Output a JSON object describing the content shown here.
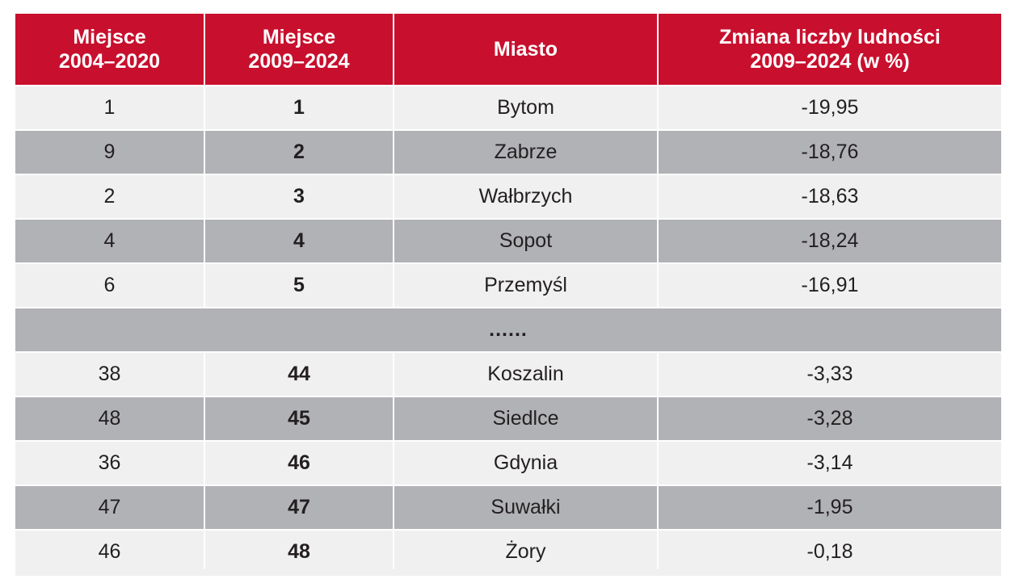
{
  "table": {
    "headers": [
      {
        "line1": "Miejsce",
        "line2": "2004–2020"
      },
      {
        "line1": "Miejsce",
        "line2": "2009–2024"
      },
      {
        "line1": "Miasto",
        "line2": ""
      },
      {
        "line1": "Zmiana liczby ludności",
        "line2": "2009–2024 (w %)"
      }
    ],
    "rows_top": [
      {
        "place_2004_2020": "1",
        "place_2009_2024": "1",
        "city": "Bytom",
        "change": "-19,95"
      },
      {
        "place_2004_2020": "9",
        "place_2009_2024": "2",
        "city": "Zabrze",
        "change": "-18,76"
      },
      {
        "place_2004_2020": "2",
        "place_2009_2024": "3",
        "city": "Wałbrzych",
        "change": "-18,63"
      },
      {
        "place_2004_2020": "4",
        "place_2009_2024": "4",
        "city": "Sopot",
        "change": "-18,24"
      },
      {
        "place_2004_2020": "6",
        "place_2009_2024": "5",
        "city": "Przemyśl",
        "change": "-16,91"
      }
    ],
    "ellipsis": "......",
    "rows_bottom": [
      {
        "place_2004_2020": "38",
        "place_2009_2024": "44",
        "city": "Koszalin",
        "change": "-3,33"
      },
      {
        "place_2004_2020": "48",
        "place_2009_2024": "45",
        "city": "Siedlce",
        "change": "-3,28"
      },
      {
        "place_2004_2020": "36",
        "place_2009_2024": "46",
        "city": "Gdynia",
        "change": "-3,14"
      },
      {
        "place_2004_2020": "47",
        "place_2009_2024": "47",
        "city": "Suwałki",
        "change": "-1,95"
      },
      {
        "place_2004_2020": "46",
        "place_2009_2024": "48",
        "city": "Żory",
        "change": "-0,18"
      }
    ]
  },
  "colors": {
    "header_bg": "#c8102e",
    "row_light": "#f0f0f0",
    "row_dark": "#b1b2b6"
  }
}
